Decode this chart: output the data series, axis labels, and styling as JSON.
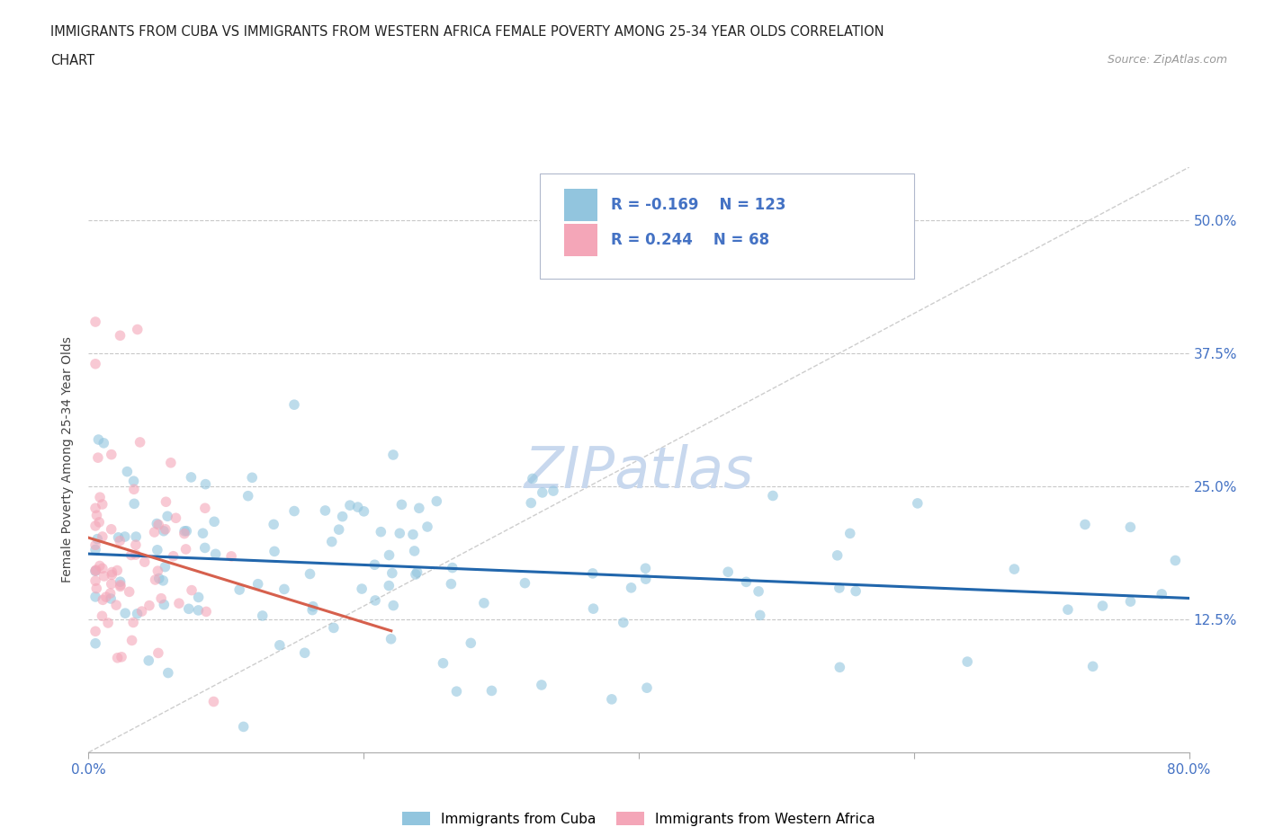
{
  "title_line1": "IMMIGRANTS FROM CUBA VS IMMIGRANTS FROM WESTERN AFRICA FEMALE POVERTY AMONG 25-34 YEAR OLDS CORRELATION",
  "title_line2": "CHART",
  "source_text": "Source: ZipAtlas.com",
  "ylabel": "Female Poverty Among 25-34 Year Olds",
  "xlim": [
    0.0,
    0.8
  ],
  "ylim": [
    0.0,
    0.55
  ],
  "xtick_positions": [
    0.0,
    0.2,
    0.4,
    0.6,
    0.8
  ],
  "xticklabels": [
    "0.0%",
    "",
    "",
    "",
    "80.0%"
  ],
  "ytick_positions": [
    0.125,
    0.25,
    0.375,
    0.5
  ],
  "ytick_labels": [
    "12.5%",
    "25.0%",
    "37.5%",
    "50.0%"
  ],
  "watermark": "ZIPatlas",
  "r1_val": "-0.169",
  "n1_val": "123",
  "r2_val": "0.244",
  "n2_val": "68",
  "legend_label1": "Immigrants from Cuba",
  "legend_label2": "Immigrants from Western Africa",
  "blue_color": "#92c5de",
  "pink_color": "#f4a6b8",
  "blue_line_color": "#2166ac",
  "pink_line_color": "#d6604d",
  "title_color": "#222222",
  "source_color": "#999999",
  "axis_label_color": "#444444",
  "tick_label_color": "#4472c4",
  "grid_color": "#c8c8c8",
  "watermark_color": "#c8d8ee",
  "legend_text_color": "#222222",
  "background_color": "#ffffff",
  "scatter_alpha": 0.6,
  "scatter_size": 70,
  "diag_line_start_x": 0.0,
  "diag_line_end_x": 0.8,
  "diag_line_start_y": 0.0,
  "diag_line_end_y": 0.55
}
